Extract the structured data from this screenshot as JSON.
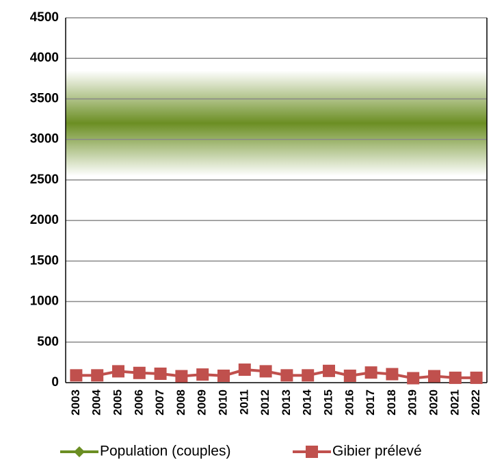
{
  "chart_data": {
    "type": "line",
    "categories": [
      "2003",
      "2004",
      "2005",
      "2006",
      "2007",
      "2008",
      "2009",
      "2010",
      "2011",
      "2012",
      "2013",
      "2014",
      "2015",
      "2016",
      "2017",
      "2018",
      "2019",
      "2020",
      "2021",
      "2022"
    ],
    "series": [
      {
        "name": "Population (couples)",
        "color": "#6b8e23",
        "style": "band",
        "low": 2550,
        "high": 3850
      },
      {
        "name": "Gibier prélevé",
        "color": "#c0504d",
        "values": [
          90,
          90,
          140,
          120,
          110,
          80,
          100,
          85,
          160,
          140,
          90,
          90,
          145,
          85,
          125,
          105,
          55,
          80,
          60,
          60
        ]
      }
    ],
    "ylim": [
      0,
      4500
    ],
    "yticks": [
      0,
      500,
      1000,
      1500,
      2000,
      2500,
      3000,
      3500,
      4000,
      4500
    ],
    "grid": true
  }
}
